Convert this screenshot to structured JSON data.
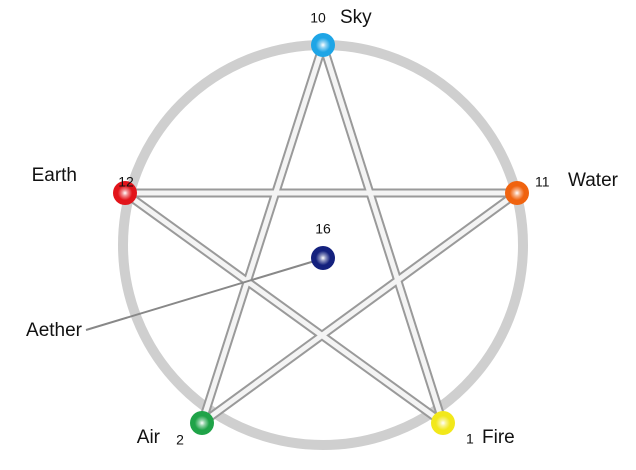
{
  "nodes": [
    {
      "label": "Sky",
      "number": 10
    },
    {
      "label": "Water",
      "number": 11
    },
    {
      "label": "Fire",
      "number": 1
    },
    {
      "label": "Air",
      "number": 2
    },
    {
      "label": "Earth",
      "number": 12
    },
    {
      "label": "Aether",
      "number": 16
    }
  ]
}
